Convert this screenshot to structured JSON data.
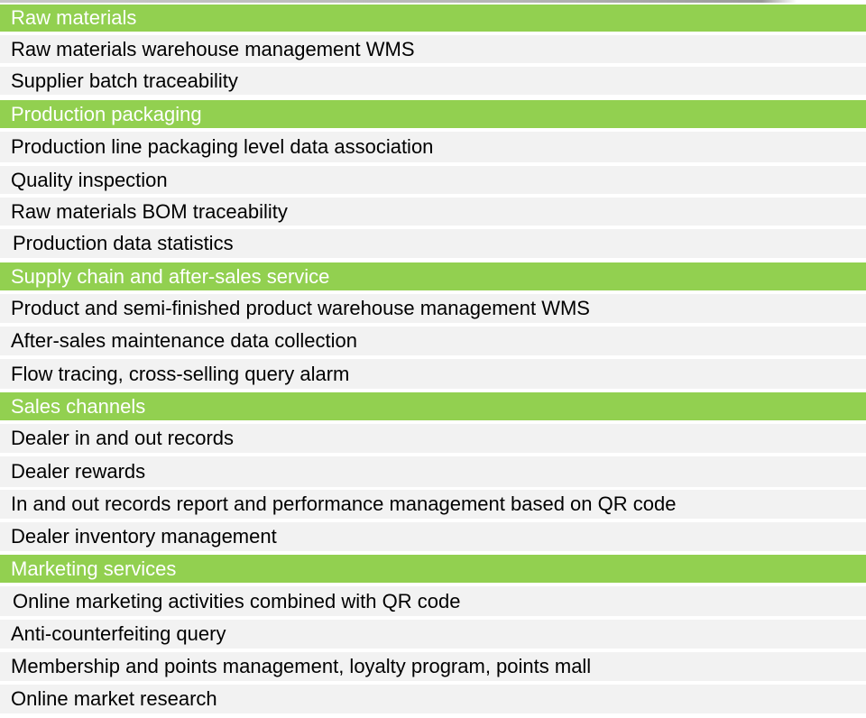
{
  "sections": [
    {
      "title": "Raw materials",
      "items": [
        "Raw materials warehouse management WMS",
        "Supplier batch traceability"
      ]
    },
    {
      "title": "Production packaging",
      "items": [
        "Production line packaging level data association",
        "Quality inspection",
        "Raw materials BOM traceability",
        "Production data statistics"
      ]
    },
    {
      "title": "Supply chain and after-sales service",
      "items": [
        "Product and semi-finished product warehouse management WMS",
        "After-sales maintenance data collection",
        "Flow tracing, cross-selling query alarm"
      ]
    },
    {
      "title": "Sales channels",
      "items": [
        "Dealer in and out records",
        "Dealer rewards",
        "In and out records report and performance management based on QR code",
        "Dealer inventory management"
      ]
    },
    {
      "title": "Marketing services",
      "items": [
        "Online marketing activities combined with QR code",
        "Anti-counterfeiting query",
        "Membership and points management, loyalty program, points mall",
        "Online market research"
      ]
    }
  ]
}
